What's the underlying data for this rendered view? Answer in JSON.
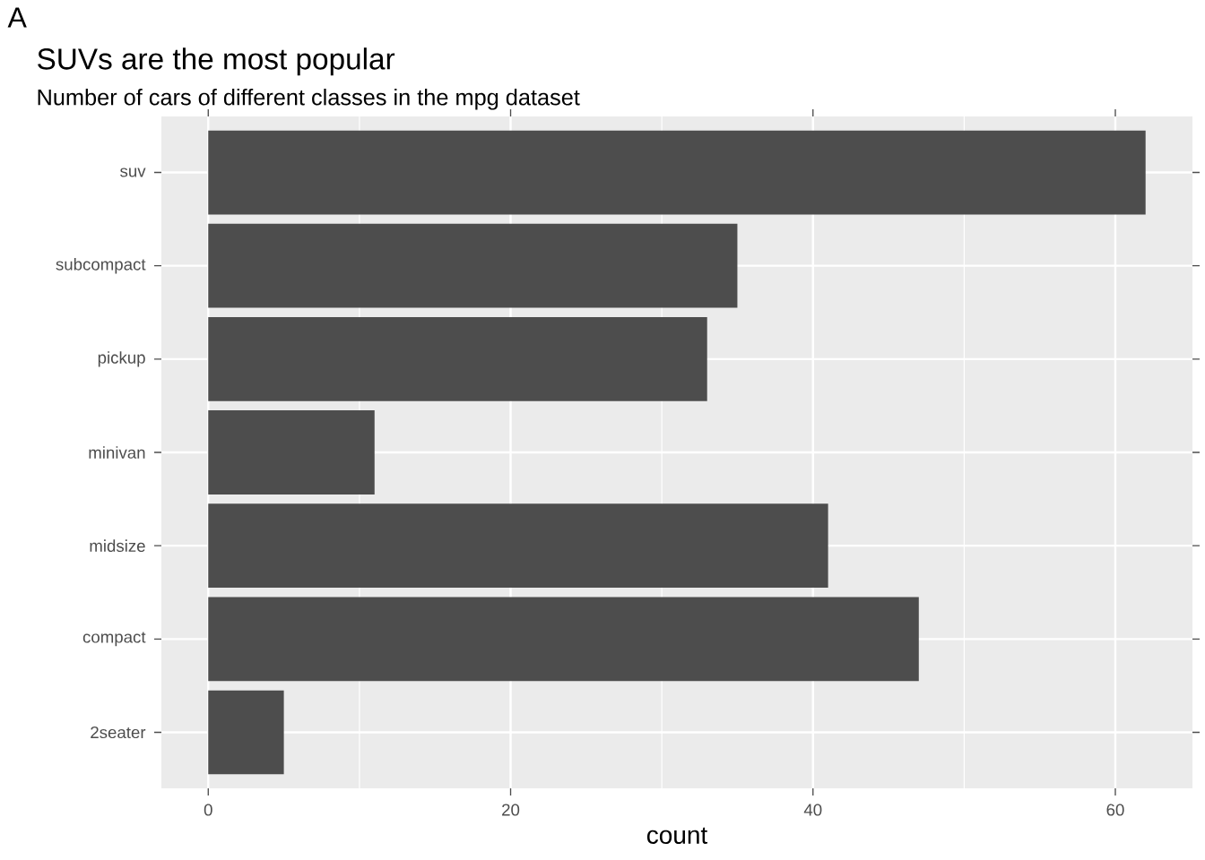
{
  "chart_data": {
    "type": "bar",
    "orientation": "horizontal",
    "title": "SUVs are the most popular",
    "subtitle": "Number of cars of different classes in the mpg dataset",
    "xlabel": "count",
    "annotations": [
      "A"
    ],
    "categories": [
      "suv",
      "subcompact",
      "pickup",
      "minivan",
      "midsize",
      "compact",
      "2seater"
    ],
    "values": [
      62,
      35,
      33,
      11,
      41,
      47,
      5
    ],
    "color": "#4d4d4d",
    "xlim": [
      -3.1,
      65.1
    ],
    "xticks": [
      0,
      20,
      40,
      60
    ],
    "grid": true
  }
}
